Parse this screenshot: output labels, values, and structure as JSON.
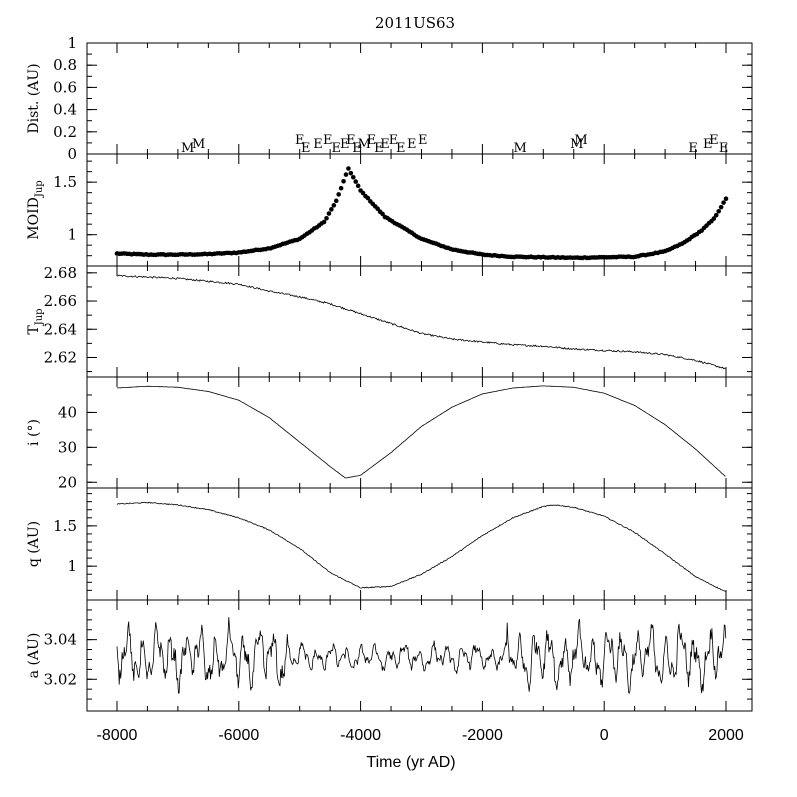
{
  "chart_data": {
    "type": "line",
    "title": "2011US63",
    "xlabel": "Time (yr AD)",
    "xlim": [
      -8000,
      2000
    ],
    "xticks": [
      -8000,
      -6000,
      -4000,
      -2000,
      0,
      2000
    ],
    "xtick_labels": [
      "-8000",
      "-6000",
      "-4000",
      "-2000",
      "0",
      "2000"
    ],
    "panels": [
      {
        "id": "dist",
        "ylabel": "Dist. (AU)",
        "ylim": [
          0,
          1
        ],
        "yticks": [
          0,
          0.2,
          0.4,
          0.6,
          0.8,
          1
        ],
        "ytick_labels": [
          "0",
          "0.2",
          "0.4",
          "0.6",
          "0.8",
          "1"
        ],
        "encounters": [
          {
            "label": "M",
            "t": -6840
          },
          {
            "label": "M",
            "t": -6660
          },
          {
            "label": "E",
            "t": -5000
          },
          {
            "label": "E",
            "t": -4900
          },
          {
            "label": "E",
            "t": -4700
          },
          {
            "label": "E",
            "t": -4540
          },
          {
            "label": "E",
            "t": -4400
          },
          {
            "label": "E",
            "t": -4260
          },
          {
            "label": "E",
            "t": -4160
          },
          {
            "label": "E",
            "t": -4060
          },
          {
            "label": "M",
            "t": -3940
          },
          {
            "label": "E",
            "t": -3820
          },
          {
            "label": "E",
            "t": -3700
          },
          {
            "label": "E",
            "t": -3600
          },
          {
            "label": "E",
            "t": -3460
          },
          {
            "label": "E",
            "t": -3340
          },
          {
            "label": "E",
            "t": -3160
          },
          {
            "label": "E",
            "t": -2980
          },
          {
            "label": "M",
            "t": -1380
          },
          {
            "label": "M",
            "t": -450
          },
          {
            "label": "M",
            "t": -380
          },
          {
            "label": "E",
            "t": 1460
          },
          {
            "label": "E",
            "t": 1700
          },
          {
            "label": "E",
            "t": 1800
          },
          {
            "label": "E",
            "t": 1960
          }
        ]
      },
      {
        "id": "moid",
        "ylabel": "MOID",
        "ylabel_sub": "Jup",
        "ylim": [
          0.74,
          1.73
        ],
        "yticks": [
          1,
          1.5
        ],
        "ytick_labels": [
          "1",
          "1.5"
        ],
        "style": "dots",
        "t": [
          -8000,
          -7500,
          -7000,
          -6500,
          -6000,
          -5500,
          -5000,
          -4600,
          -4400,
          -4200,
          -4000,
          -3600,
          -3000,
          -2500,
          -2000,
          -1500,
          -1000,
          -500,
          0,
          500,
          1000,
          1300,
          1600,
          1800,
          2000
        ],
        "values": [
          0.82,
          0.81,
          0.81,
          0.815,
          0.83,
          0.87,
          0.96,
          1.12,
          1.32,
          1.63,
          1.42,
          1.17,
          0.96,
          0.86,
          0.81,
          0.79,
          0.785,
          0.78,
          0.785,
          0.79,
          0.84,
          0.92,
          1.04,
          1.15,
          1.34
        ]
      },
      {
        "id": "tjup",
        "ylabel": "T",
        "ylabel_sub": "Jup",
        "ylim": [
          2.609,
          2.682
        ],
        "yticks": [
          2.62,
          2.64,
          2.66,
          2.68
        ],
        "ytick_labels": [
          "2.62",
          "2.64",
          "2.66",
          "2.68"
        ],
        "t": [
          -8000,
          -7000,
          -6500,
          -6000,
          -5500,
          -5000,
          -4500,
          -4000,
          -3500,
          -3000,
          -2500,
          -2000,
          -1500,
          -1000,
          -500,
          0,
          500,
          1000,
          1500,
          2000
        ],
        "values": [
          2.678,
          2.676,
          2.674,
          2.672,
          2.667,
          2.663,
          2.658,
          2.651,
          2.644,
          2.637,
          2.633,
          2.631,
          2.629,
          2.628,
          2.626,
          2.625,
          2.624,
          2.622,
          2.618,
          2.612
        ]
      },
      {
        "id": "incl",
        "ylabel": "i (°)",
        "ylim": [
          19.5,
          49
        ],
        "yticks": [
          20,
          30,
          40
        ],
        "ytick_labels": [
          "20",
          "30",
          "40"
        ],
        "t": [
          -8000,
          -7500,
          -7000,
          -6500,
          -6000,
          -5500,
          -5000,
          -4500,
          -4250,
          -4000,
          -3500,
          -3000,
          -2500,
          -2000,
          -1500,
          -1000,
          -500,
          0,
          500,
          1000,
          1500,
          2000
        ],
        "values": [
          47,
          47.5,
          47.2,
          46,
          43.5,
          38.5,
          31.5,
          24.5,
          21.2,
          22,
          28.5,
          36,
          41.5,
          45.3,
          47,
          47.6,
          47.2,
          45.5,
          42,
          36.5,
          29.5,
          21.5
        ]
      },
      {
        "id": "q",
        "ylabel": "q (AU)",
        "ylim": [
          0.63,
          1.92
        ],
        "yticks": [
          1,
          1.5
        ],
        "ytick_labels": [
          "1",
          "1.5"
        ],
        "t": [
          -8000,
          -7500,
          -7000,
          -6500,
          -6000,
          -5500,
          -5000,
          -4500,
          -4000,
          -3500,
          -3000,
          -2500,
          -2000,
          -1500,
          -1000,
          -800,
          -500,
          0,
          500,
          1000,
          1500,
          2000
        ],
        "values": [
          1.77,
          1.79,
          1.76,
          1.7,
          1.6,
          1.45,
          1.22,
          0.92,
          0.73,
          0.75,
          0.9,
          1.12,
          1.38,
          1.6,
          1.74,
          1.76,
          1.73,
          1.62,
          1.42,
          1.15,
          0.87,
          0.68
        ]
      },
      {
        "id": "a",
        "ylabel": "a (AU)",
        "ylim": [
          3.006,
          3.058
        ],
        "yticks": [
          3.02,
          3.04
        ],
        "ytick_labels": [
          "3.02",
          "3.04"
        ],
        "style": "oscillating",
        "mean": 3.031,
        "range_min": 3.013,
        "range_max": 3.054
      }
    ]
  }
}
